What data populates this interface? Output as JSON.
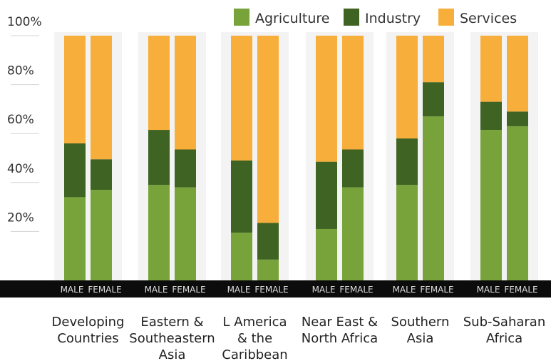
{
  "chart_data": {
    "type": "bar",
    "stacked": true,
    "normalized": true,
    "ylim": [
      0,
      100
    ],
    "yticks": [
      "20%",
      "40%",
      "60%",
      "80%",
      "100%"
    ],
    "yticks_values": [
      20,
      40,
      60,
      80,
      100
    ],
    "legend": {
      "placement": "top-right",
      "entries": [
        "Agriculture",
        "Industry",
        "Services"
      ]
    },
    "colors": {
      "Agriculture": "#78a33a",
      "Industry": "#3f6322",
      "Services": "#f8ae3a",
      "band": "#f3f3f3",
      "axis_bar": "#0c0c0c"
    },
    "gender_labels": [
      "MALE",
      "FEMALE"
    ],
    "groups": [
      {
        "label": [
          "Developing",
          "Countries"
        ],
        "bars": [
          {
            "gender": "MALE",
            "Agriculture": 34,
            "Industry": 22,
            "Services": 44
          },
          {
            "gender": "FEMALE",
            "Agriculture": 37,
            "Industry": 12.5,
            "Services": 50.5
          }
        ]
      },
      {
        "label": [
          "Eastern &",
          "Southeastern",
          "Asia"
        ],
        "bars": [
          {
            "gender": "MALE",
            "Agriculture": 39,
            "Industry": 22.5,
            "Services": 38.5
          },
          {
            "gender": "FEMALE",
            "Agriculture": 38,
            "Industry": 15.5,
            "Services": 46.5
          }
        ]
      },
      {
        "label": [
          "L America",
          "& the",
          "Caribbean"
        ],
        "bars": [
          {
            "gender": "MALE",
            "Agriculture": 19.5,
            "Industry": 29.5,
            "Services": 51
          },
          {
            "gender": "FEMALE",
            "Agriculture": 8.5,
            "Industry": 15,
            "Services": 76.5
          }
        ]
      },
      {
        "label": [
          "Near East &",
          "North Africa"
        ],
        "bars": [
          {
            "gender": "MALE",
            "Agriculture": 21,
            "Industry": 27.5,
            "Services": 51.5
          },
          {
            "gender": "FEMALE",
            "Agriculture": 38,
            "Industry": 15.5,
            "Services": 46.5
          }
        ]
      },
      {
        "label": [
          "Southern",
          "Asia"
        ],
        "bars": [
          {
            "gender": "MALE",
            "Agriculture": 39,
            "Industry": 19,
            "Services": 42
          },
          {
            "gender": "FEMALE",
            "Agriculture": 67,
            "Industry": 14,
            "Services": 19
          }
        ]
      },
      {
        "label": [
          "Sub-Saharan",
          "Africa"
        ],
        "bars": [
          {
            "gender": "MALE",
            "Agriculture": 61.5,
            "Industry": 11.5,
            "Services": 27
          },
          {
            "gender": "FEMALE",
            "Agriculture": 63,
            "Industry": 6,
            "Services": 31
          }
        ]
      }
    ]
  }
}
